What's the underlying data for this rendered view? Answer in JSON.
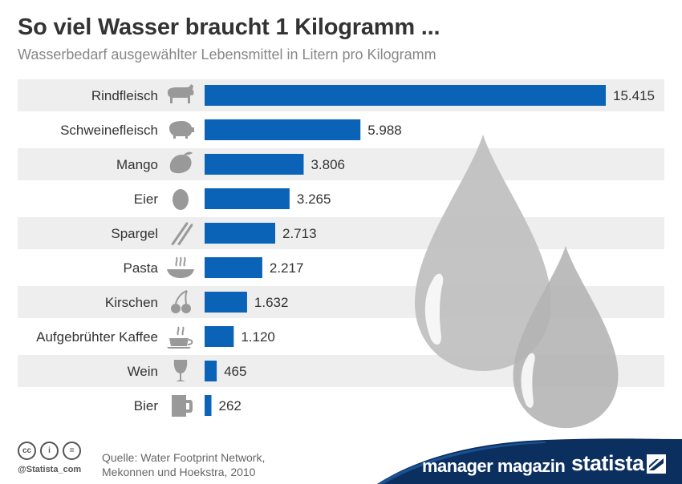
{
  "header": {
    "title": "So viel Wasser braucht 1 Kilogramm ...",
    "subtitle": "Wasserbedarf ausgewählter Lebensmittel in Litern pro Kilogramm"
  },
  "chart_data": {
    "type": "bar",
    "orientation": "horizontal",
    "categories": [
      "Rindfleisch",
      "Schweinefleisch",
      "Mango",
      "Eier",
      "Spargel",
      "Pasta",
      "Kirschen",
      "Aufgebrühter Kaffee",
      "Wein",
      "Bier"
    ],
    "values": [
      15415,
      5988,
      3806,
      3265,
      2713,
      2217,
      1632,
      1120,
      465,
      262
    ],
    "value_labels": [
      "15.415",
      "5.988",
      "3.806",
      "3.265",
      "2.713",
      "2.217",
      "1.632",
      "1.120",
      "465",
      "262"
    ],
    "icons": [
      "cow-icon",
      "pig-icon",
      "mango-icon",
      "egg-icon",
      "asparagus-icon",
      "pasta-icon",
      "cherries-icon",
      "coffee-cup-icon",
      "wine-glass-icon",
      "beer-mug-icon"
    ],
    "xlim": [
      0,
      15415
    ],
    "grid": false,
    "bar_color": "#0b63b8",
    "stripe_color": "#eeeeee"
  },
  "footer": {
    "license_icons": [
      "cc-icon",
      "by-icon",
      "nd-icon"
    ],
    "cc_symbols": [
      "cc",
      "i",
      "="
    ],
    "credit": "@Statista_com",
    "source_line1": "Quelle: Water Footprint Network,",
    "source_line2": "Mekonnen und Hoekstra, 2010",
    "brand1": "manager magazin",
    "brand2": "statista",
    "band_color": "#0b2f5e"
  },
  "colors": {
    "icon_gray": "#999999",
    "drop_gray": "#bfbfbf"
  }
}
